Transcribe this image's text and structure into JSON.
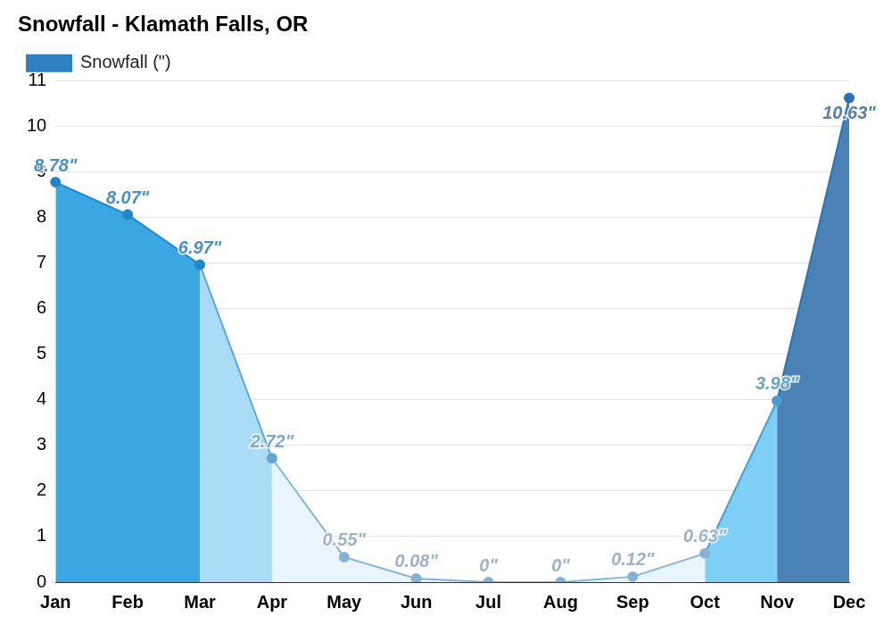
{
  "chart_data": {
    "type": "area",
    "title": "Snowfall - Klamath Falls, OR",
    "categories": [
      "Jan",
      "Feb",
      "Mar",
      "Apr",
      "May",
      "Jun",
      "Jul",
      "Aug",
      "Sep",
      "Oct",
      "Nov",
      "Dec"
    ],
    "series": [
      {
        "name": "Snowfall (\")",
        "color": "#2f7fc1",
        "values": [
          8.78,
          8.07,
          6.97,
          2.72,
          0.55,
          0.08,
          0,
          0,
          0.12,
          0.63,
          3.98,
          10.63
        ],
        "value_labels": [
          "8.78\"",
          "8.07\"",
          "6.97\"",
          "2.72\"",
          "0.55\"",
          "0.08\"",
          "0\"",
          "0\"",
          "0.12\"",
          "0.63\"",
          "3.98\"",
          "10.63\""
        ],
        "colors": [
          "#3aa6e2",
          "#3aa6e2",
          "#3aa6e2",
          "#aadcf7",
          "#e8f5fc",
          "#e8f5fc",
          "#e8f5fc",
          "#e8f5fc",
          "#e8f5fc",
          "#e8f5fc",
          "#7fcef5",
          "#4a82b6"
        ]
      }
    ],
    "ylim": [
      0,
      11
    ],
    "yticks": [
      0,
      1,
      2,
      3,
      4,
      5,
      6,
      7,
      8,
      9,
      10,
      11
    ],
    "grid": true,
    "legend": "top",
    "data_labels": true
  }
}
